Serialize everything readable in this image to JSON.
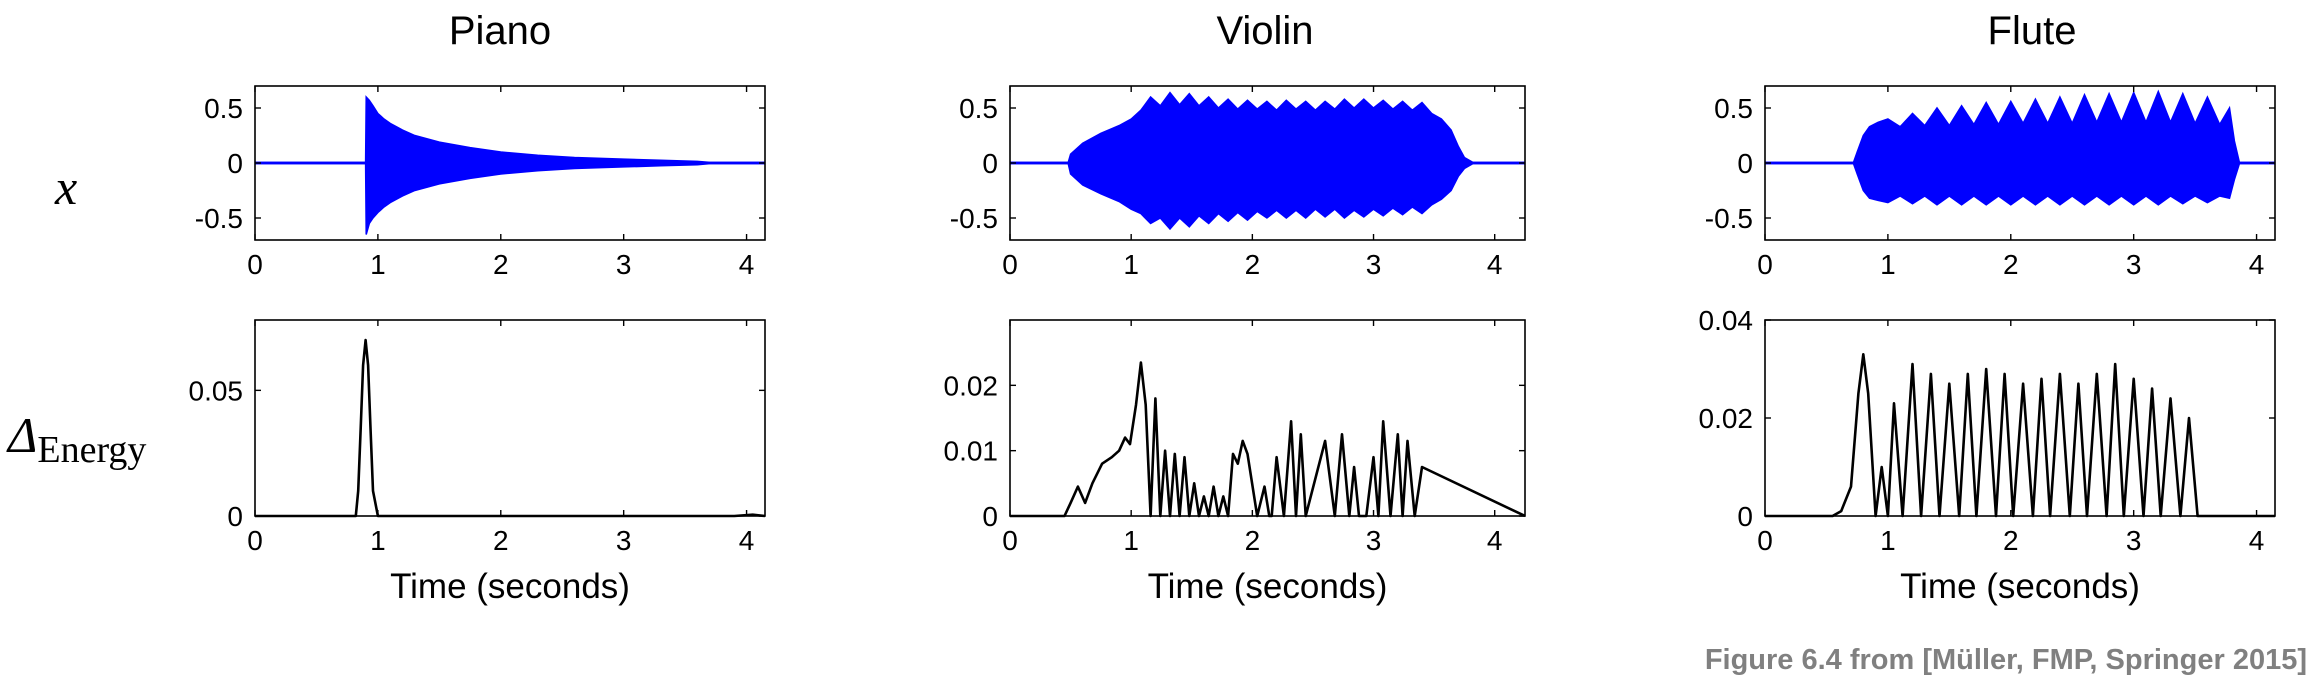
{
  "caption": "Figure 6.4 from [Müller, FMP, Springer 2015]",
  "row_labels": {
    "top": "x",
    "bottom_symbol": "Δ",
    "bottom_subscript": "Energy"
  },
  "colors": {
    "waveform": "#0000ff",
    "energy": "#000000",
    "caption": "#808080"
  },
  "chart_data": [
    {
      "type": "area",
      "title": "Piano",
      "xlabel": "",
      "ylabel": "x",
      "xlim": [
        0,
        4.15
      ],
      "ylim": [
        -0.7,
        0.7
      ],
      "xticks": [
        0,
        1,
        2,
        3,
        4
      ],
      "yticks": [
        0.5,
        0,
        -0.5
      ],
      "ytick_labels": [
        "0.5",
        "0",
        "-0.5"
      ],
      "series": [
        {
          "values": {
            "t": [
              0,
              0.9,
              0.905,
              0.93,
              0.96,
              1.0,
              1.05,
              1.1,
              1.2,
              1.3,
              1.5,
              1.75,
              2.0,
              2.3,
              2.6,
              3.0,
              3.3,
              3.6,
              3.7,
              4.15
            ],
            "upper": [
              0.005,
              0.005,
              0.6,
              0.57,
              0.52,
              0.45,
              0.4,
              0.36,
              0.3,
              0.25,
              0.19,
              0.14,
              0.1,
              0.07,
              0.05,
              0.035,
              0.025,
              0.015,
              0.005,
              0.005
            ],
            "lower": [
              -0.005,
              -0.005,
              -0.65,
              -0.55,
              -0.5,
              -0.45,
              -0.4,
              -0.36,
              -0.3,
              -0.25,
              -0.19,
              -0.14,
              -0.1,
              -0.07,
              -0.05,
              -0.035,
              -0.025,
              -0.015,
              -0.005,
              -0.005
            ]
          }
        }
      ]
    },
    {
      "type": "area",
      "title": "Violin",
      "xlabel": "",
      "ylabel": "",
      "xlim": [
        0,
        4.25
      ],
      "ylim": [
        -0.7,
        0.7
      ],
      "xticks": [
        0,
        1,
        2,
        3,
        4
      ],
      "yticks": [
        0.5,
        0,
        -0.5
      ],
      "ytick_labels": [
        "0.5",
        "0",
        "-0.5"
      ],
      "series": [
        {
          "values": {
            "t": [
              0,
              0.48,
              0.5,
              0.6,
              0.75,
              0.9,
              1.0,
              1.08,
              1.16,
              1.24,
              1.32,
              1.4,
              1.48,
              1.56,
              1.64,
              1.72,
              1.8,
              1.88,
              1.96,
              2.04,
              2.12,
              2.2,
              2.28,
              2.36,
              2.44,
              2.52,
              2.6,
              2.68,
              2.76,
              2.84,
              2.92,
              3.0,
              3.08,
              3.16,
              3.24,
              3.32,
              3.4,
              3.48,
              3.56,
              3.64,
              3.7,
              3.75,
              3.82,
              4.25
            ],
            "upper": [
              0.005,
              0.005,
              0.08,
              0.18,
              0.27,
              0.34,
              0.4,
              0.48,
              0.6,
              0.52,
              0.64,
              0.53,
              0.63,
              0.52,
              0.6,
              0.5,
              0.58,
              0.49,
              0.57,
              0.49,
              0.56,
              0.48,
              0.57,
              0.49,
              0.56,
              0.48,
              0.56,
              0.49,
              0.58,
              0.5,
              0.58,
              0.5,
              0.57,
              0.49,
              0.56,
              0.48,
              0.55,
              0.45,
              0.4,
              0.3,
              0.15,
              0.05,
              0.005,
              0.005
            ],
            "lower": [
              -0.005,
              -0.005,
              -0.1,
              -0.2,
              -0.28,
              -0.35,
              -0.42,
              -0.46,
              -0.55,
              -0.5,
              -0.6,
              -0.5,
              -0.58,
              -0.48,
              -0.55,
              -0.46,
              -0.53,
              -0.45,
              -0.52,
              -0.44,
              -0.5,
              -0.43,
              -0.5,
              -0.43,
              -0.5,
              -0.42,
              -0.49,
              -0.42,
              -0.5,
              -0.43,
              -0.49,
              -0.42,
              -0.48,
              -0.41,
              -0.47,
              -0.4,
              -0.46,
              -0.38,
              -0.33,
              -0.25,
              -0.12,
              -0.05,
              -0.005,
              -0.005
            ]
          }
        }
      ]
    },
    {
      "type": "area",
      "title": "Flute",
      "xlabel": "",
      "ylabel": "",
      "xlim": [
        0,
        4.15
      ],
      "ylim": [
        -0.7,
        0.7
      ],
      "xticks": [
        0,
        1,
        2,
        3,
        4
      ],
      "yticks": [
        0.5,
        0,
        -0.5
      ],
      "ytick_labels": [
        "0.5",
        "0",
        "-0.5"
      ],
      "series": [
        {
          "values": {
            "t": [
              0,
              0.72,
              0.75,
              0.8,
              0.85,
              0.92,
              1.0,
              1.1,
              1.2,
              1.3,
              1.4,
              1.5,
              1.6,
              1.7,
              1.8,
              1.9,
              2.0,
              2.1,
              2.2,
              2.3,
              2.4,
              2.5,
              2.6,
              2.7,
              2.8,
              2.9,
              3.0,
              3.1,
              3.2,
              3.3,
              3.4,
              3.5,
              3.6,
              3.7,
              3.78,
              3.82,
              3.86,
              4.15
            ],
            "upper": [
              0.005,
              0.005,
              0.1,
              0.25,
              0.33,
              0.37,
              0.4,
              0.33,
              0.45,
              0.34,
              0.5,
              0.34,
              0.52,
              0.35,
              0.55,
              0.35,
              0.56,
              0.36,
              0.58,
              0.36,
              0.6,
              0.36,
              0.62,
              0.37,
              0.63,
              0.37,
              0.64,
              0.37,
              0.65,
              0.37,
              0.63,
              0.36,
              0.6,
              0.35,
              0.5,
              0.2,
              0.005,
              0.005
            ],
            "lower": [
              -0.005,
              -0.005,
              -0.1,
              -0.25,
              -0.32,
              -0.34,
              -0.36,
              -0.3,
              -0.37,
              -0.3,
              -0.38,
              -0.3,
              -0.38,
              -0.3,
              -0.38,
              -0.3,
              -0.38,
              -0.3,
              -0.38,
              -0.3,
              -0.38,
              -0.3,
              -0.38,
              -0.3,
              -0.38,
              -0.3,
              -0.38,
              -0.3,
              -0.38,
              -0.3,
              -0.37,
              -0.3,
              -0.36,
              -0.3,
              -0.32,
              -0.15,
              -0.005,
              -0.005
            ]
          }
        }
      ]
    },
    {
      "type": "line",
      "title": "",
      "xlabel": "Time (seconds)",
      "ylabel": "ΔEnergy",
      "xlim": [
        0,
        4.15
      ],
      "ylim": [
        0,
        0.078
      ],
      "xticks": [
        0,
        1,
        2,
        3,
        4
      ],
      "yticks": [
        0,
        0.05
      ],
      "ytick_labels": [
        "0",
        "0.05"
      ],
      "series": [
        {
          "values": {
            "t": [
              0,
              0.5,
              0.82,
              0.84,
              0.86,
              0.88,
              0.9,
              0.92,
              0.94,
              0.96,
              1.0,
              3.9,
              4.05,
              4.15
            ],
            "v": [
              0,
              0,
              0,
              0.01,
              0.035,
              0.06,
              0.07,
              0.06,
              0.035,
              0.01,
              0,
              0,
              0.0005,
              0
            ]
          }
        }
      ]
    },
    {
      "type": "line",
      "title": "",
      "xlabel": "Time (seconds)",
      "ylabel": "",
      "xlim": [
        0,
        4.25
      ],
      "ylim": [
        0,
        0.03
      ],
      "xticks": [
        0,
        1,
        2,
        3,
        4
      ],
      "yticks": [
        0,
        0.01,
        0.02
      ],
      "ytick_labels": [
        "0",
        "0.01",
        "0.02"
      ],
      "series": [
        {
          "values": {
            "t": [
              0,
              0.45,
              0.5,
              0.56,
              0.62,
              0.68,
              0.76,
              0.84,
              0.9,
              0.95,
              0.99,
              1.04,
              1.08,
              1.12,
              1.16,
              1.2,
              1.24,
              1.28,
              1.32,
              1.36,
              1.4,
              1.44,
              1.48,
              1.52,
              1.56,
              1.6,
              1.64,
              1.68,
              1.72,
              1.76,
              1.8,
              1.84,
              1.88,
              1.92,
              1.96,
              2.04,
              2.1,
              2.14,
              2.16,
              2.2,
              2.26,
              2.32,
              2.36,
              2.4,
              2.44,
              2.6,
              2.68,
              2.74,
              2.8,
              2.84,
              2.88,
              2.94,
              3.0,
              3.04,
              3.08,
              3.14,
              3.2,
              3.24,
              3.28,
              3.34,
              3.4,
              4.25
            ],
            "v": [
              0,
              0,
              0.002,
              0.0045,
              0.002,
              0.005,
              0.008,
              0.009,
              0.01,
              0.012,
              0.011,
              0.017,
              0.0235,
              0.017,
              0,
              0.018,
              0,
              0.01,
              0,
              0.0095,
              0,
              0.009,
              0,
              0.005,
              0,
              0.003,
              0,
              0.0045,
              0,
              0.003,
              0,
              0.0095,
              0.008,
              0.0115,
              0.0095,
              0,
              0.0045,
              0,
              0,
              0.009,
              0,
              0.0145,
              0,
              0.0125,
              0,
              0.0115,
              0,
              0.0125,
              0,
              0.0075,
              0,
              0,
              0.009,
              0,
              0.0145,
              0,
              0.0125,
              0,
              0.0115,
              0,
              0.0075,
              0
            ]
          }
        }
      ]
    },
    {
      "type": "line",
      "title": "",
      "xlabel": "Time (seconds)",
      "ylabel": "",
      "xlim": [
        0,
        4.15
      ],
      "ylim": [
        0,
        0.04
      ],
      "xticks": [
        0,
        1,
        2,
        3,
        4
      ],
      "yticks": [
        0,
        0.02,
        0.04
      ],
      "ytick_labels": [
        "0",
        "0.02",
        "0.04"
      ],
      "series": [
        {
          "values": {
            "t": [
              0,
              0.55,
              0.62,
              0.7,
              0.76,
              0.8,
              0.84,
              0.9,
              0.95,
              1.0,
              1.05,
              1.12,
              1.2,
              1.27,
              1.35,
              1.42,
              1.5,
              1.58,
              1.65,
              1.72,
              1.8,
              1.88,
              1.95,
              2.02,
              2.1,
              2.18,
              2.25,
              2.32,
              2.4,
              2.48,
              2.55,
              2.62,
              2.7,
              2.78,
              2.85,
              2.92,
              3.0,
              3.08,
              3.15,
              3.22,
              3.3,
              3.38,
              3.45,
              3.52,
              3.6,
              3.68,
              3.75,
              3.82,
              4.15
            ],
            "v": [
              0,
              0,
              0.001,
              0.006,
              0.025,
              0.033,
              0.025,
              0,
              0.01,
              0,
              0.023,
              0,
              0.031,
              0,
              0.029,
              0,
              0.027,
              0,
              0.029,
              0,
              0.03,
              0,
              0.029,
              0,
              0.027,
              0,
              0.028,
              0,
              0.029,
              0,
              0.027,
              0,
              0.029,
              0,
              0.031,
              0,
              0.028,
              0,
              0.026,
              0,
              0.024,
              0,
              0.02,
              0,
              0,
              0,
              0,
              0,
              0
            ]
          }
        }
      ]
    }
  ]
}
